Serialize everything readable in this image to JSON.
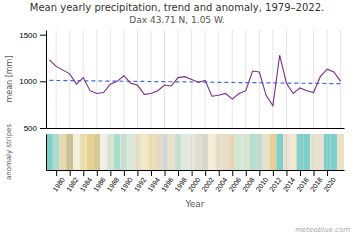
{
  "chart_data": [
    {
      "type": "line",
      "title": "Mean yearly precipitation, trend and anomaly, 1979–2022.",
      "subtitle": "Dax 43.71 N, 1.05 W.",
      "y_label": "mean [mm]",
      "annotations": [
        "meteoblue.com"
      ],
      "x": [
        1979,
        1980,
        1981,
        1982,
        1983,
        1984,
        1985,
        1986,
        1987,
        1988,
        1989,
        1990,
        1991,
        1992,
        1993,
        1994,
        1995,
        1996,
        1997,
        1998,
        1999,
        2000,
        2001,
        2002,
        2003,
        2004,
        2005,
        2006,
        2007,
        2008,
        2009,
        2010,
        2011,
        2012,
        2013,
        2014,
        2015,
        2016,
        2017,
        2018,
        2019,
        2020,
        2021,
        2022
      ],
      "series": [
        {
          "color": "#4169E1",
          "line_style": "dashed",
          "values": [
            1010,
            1009.1860465116279,
            1008.3720930232558,
            1007.5581395348837,
            1006.7441860465116,
            1005.9302325581396,
            1005.1162790697674,
            1004.3023255813954,
            1003.4883720930233,
            1002.6744186046512,
            1001.8604651162791,
            1001.046511627907,
            1000.232558139535,
            999.4186046511628,
            998.6046511627907,
            997.7906976744187,
            996.9767441860465,
            996.1627906976744,
            995.3488372093022,
            994.5348837209302,
            993.7209302325581,
            992.906976744186,
            992.093023255814,
            991.2790697674419,
            990.4651162790698,
            989.6511627906978,
            988.8372093023256,
            988.0232558139535,
            987.2093023255813,
            986.3953488372093,
            985.5813953488372,
            984.767441860465,
            983.953488372093,
            983.1395348837209,
            982.3255813953488,
            981.5116279069767,
            980.6976744186047,
            979.8837209302326,
            979.0697674418604,
            978.2558139534884,
            977.4418604651163,
            976.6279069767442,
            975.8139534883721,
            975
          ]
        },
        {
          "color": "#7B2D8B",
          "line_style": "solid",
          "values": [
            1230,
            1160,
            1120,
            1080,
            970,
            1040,
            900,
            870,
            880,
            970,
            1000,
            1060,
            980,
            960,
            860,
            870,
            900,
            960,
            950,
            1040,
            1050,
            1020,
            990,
            1010,
            840,
            850,
            870,
            810,
            870,
            900,
            1110,
            1100,
            850,
            740,
            1280,
            980,
            870,
            930,
            900,
            880,
            1050,
            1130,
            1100,
            1000
          ]
        }
      ],
      "xlim": [
        1978.5,
        2022.5
      ],
      "xticks": [
        1980,
        1982,
        1984,
        1986,
        1988,
        1990,
        1992,
        1994,
        1996,
        1998,
        2000,
        2002,
        2004,
        2006,
        2008,
        2010,
        2012,
        2014,
        2016,
        2018,
        2020,
        2022
      ],
      "ylim": [
        500,
        1550
      ],
      "yticks": [
        500,
        1000,
        1500
      ],
      "grid": true,
      "tick_labels": "y"
    },
    {
      "type": "bar",
      "x_label": "Year",
      "y_label": "anomaly stripes",
      "x": [
        1979,
        1980,
        1981,
        1982,
        1983,
        1984,
        1985,
        1986,
        1987,
        1988,
        1989,
        1990,
        1991,
        1992,
        1993,
        1994,
        1995,
        1996,
        1997,
        1998,
        1999,
        2000,
        2001,
        2002,
        2003,
        2004,
        2005,
        2006,
        2007,
        2008,
        2009,
        2010,
        2011,
        2012,
        2013,
        2014,
        2015,
        2016,
        2017,
        2018,
        2019,
        2020,
        2021,
        2022
      ],
      "values": [
        1,
        1,
        1,
        1,
        1,
        1,
        1,
        1,
        1,
        1,
        1,
        1,
        1,
        1,
        1,
        1,
        1,
        1,
        1,
        1,
        1,
        1,
        1,
        1,
        1,
        1,
        1,
        1,
        1,
        1,
        1,
        1,
        1,
        1,
        1,
        1,
        1,
        1,
        1,
        1,
        1,
        1,
        1,
        1
      ],
      "colors": [
        "#7ECECA",
        "#AADDCC",
        "#E8D8B0",
        "#C8C090",
        "#F5EDD8",
        "#F0E0B0",
        "#E8D090",
        "#D8C890",
        "#F0EDEA",
        "#D8E8D0",
        "#AADDCC",
        "#C8E0D0",
        "#D8E8D8",
        "#E8E0C8",
        "#F0E8C8",
        "#F0E0B0",
        "#E8D8C0",
        "#D8D8D8",
        "#E8E0C8",
        "#C8E0D0",
        "#E0E8E0",
        "#E8E8D8",
        "#E0DDD0",
        "#D8D8C8",
        "#F5EDD8",
        "#E8E0C8",
        "#E8DEC8",
        "#E8D8B8",
        "#D0E8D8",
        "#D8E8D0",
        "#B8DDD0",
        "#C0DDD0",
        "#E8E0C8",
        "#E8D090",
        "#7ECECA",
        "#E8E0D0",
        "#F0E8D0",
        "#7ECECA",
        "#7ECECA",
        "#E8E0D0",
        "#E8E0D0",
        "#7ECECA",
        "#7ECECA",
        "#E8E0C8"
      ],
      "xlim": [
        1978.5,
        2022.5
      ],
      "xticks": [
        1980,
        1982,
        1984,
        1986,
        1988,
        1990,
        1992,
        1994,
        1996,
        1998,
        2000,
        2002,
        2004,
        2006,
        2008,
        2010,
        2012,
        2014,
        2016,
        2018,
        2020
      ],
      "ylim": [
        0,
        1
      ],
      "yticks": [],
      "grid": true,
      "tick_labels": "x"
    }
  ]
}
